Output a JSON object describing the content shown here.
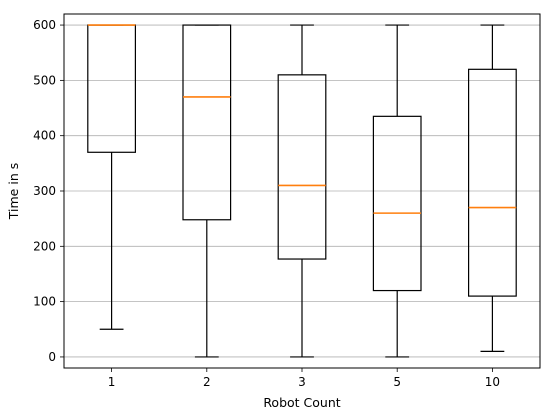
{
  "chart_data": {
    "type": "boxplot",
    "xlabel": "Robot Count",
    "ylabel": "Time in s",
    "categories": [
      "1",
      "2",
      "3",
      "5",
      "10"
    ],
    "ylim": [
      -20,
      620
    ],
    "yticks": [
      0,
      100,
      200,
      300,
      400,
      500,
      600
    ],
    "grid": "horizontal",
    "boxes": [
      {
        "category": "1",
        "whisker_low": 50,
        "q1": 370,
        "median": 600,
        "q3": 600,
        "whisker_high": 600
      },
      {
        "category": "2",
        "whisker_low": 0,
        "q1": 248,
        "median": 470,
        "q3": 600,
        "whisker_high": 600
      },
      {
        "category": "3",
        "whisker_low": 0,
        "q1": 177,
        "median": 310,
        "q3": 510,
        "whisker_high": 600
      },
      {
        "category": "5",
        "whisker_low": 0,
        "q1": 120,
        "median": 260,
        "q3": 435,
        "whisker_high": 600
      },
      {
        "category": "10",
        "whisker_low": 10,
        "q1": 110,
        "median": 270,
        "q3": 520,
        "whisker_high": 600
      }
    ],
    "colors": {
      "box": "#000000",
      "median": "#ff7f0e",
      "grid": "#b0b0b0"
    }
  }
}
